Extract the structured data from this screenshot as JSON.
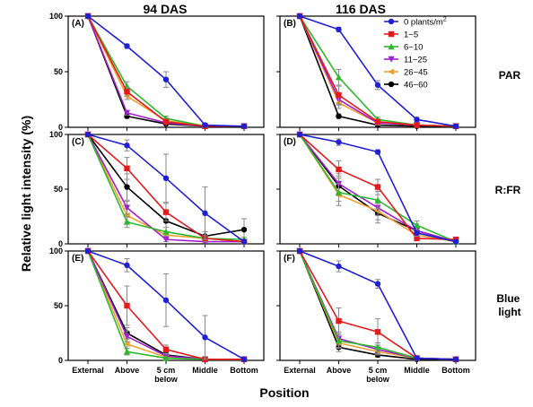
{
  "figure": {
    "column_titles": [
      "94 DAS",
      "116 DAS"
    ],
    "row_labels": [
      "PAR",
      "R:FR",
      "Blue light"
    ],
    "ylabel": "Relative light intensity (%)",
    "xlabel": "Position"
  },
  "legend": {
    "entries": [
      {
        "label": "0 plants/m",
        "sup": "2",
        "color": "#1f1fd6",
        "marker": "circle"
      },
      {
        "label": "1~5",
        "color": "#e41a1c",
        "marker": "square"
      },
      {
        "label": "6~10",
        "color": "#2db82d",
        "marker": "triangle-up"
      },
      {
        "label": "11~25",
        "color": "#a020d0",
        "marker": "triangle-down"
      },
      {
        "label": "26~45",
        "color": "#f0a030",
        "marker": "triangle-left"
      },
      {
        "label": "46~60",
        "color": "#000000",
        "marker": "circle"
      }
    ]
  },
  "chart_data": [
    {
      "panel": "(A)",
      "type": "line",
      "categories": [
        "External",
        "Above",
        "5 cm below",
        "Middle",
        "Bottom"
      ],
      "ylim": [
        0,
        100
      ],
      "yticks": [
        0,
        50,
        100
      ],
      "series": [
        {
          "name": "0 plants/m2",
          "values": [
            100,
            73,
            43,
            2,
            1
          ],
          "err": [
            0,
            2,
            7,
            1,
            0
          ]
        },
        {
          "name": "1~5",
          "values": [
            100,
            32,
            5,
            1,
            1
          ],
          "err": [
            0,
            4,
            2,
            0,
            0
          ]
        },
        {
          "name": "6~10",
          "values": [
            100,
            37,
            8,
            1,
            1
          ],
          "err": [
            0,
            4,
            2,
            0,
            0
          ]
        },
        {
          "name": "11~25",
          "values": [
            100,
            13,
            4,
            1,
            1
          ],
          "err": [
            0,
            2,
            1,
            0,
            0
          ]
        },
        {
          "name": "26~45",
          "values": [
            100,
            28,
            6,
            1,
            1
          ],
          "err": [
            0,
            3,
            1,
            0,
            0
          ]
        },
        {
          "name": "46~60",
          "values": [
            100,
            10,
            3,
            1,
            1
          ],
          "err": [
            0,
            2,
            1,
            0,
            0
          ]
        }
      ]
    },
    {
      "panel": "(B)",
      "type": "line",
      "categories": [
        "External",
        "Above",
        "5 cm below",
        "Middle",
        "Bottom"
      ],
      "ylim": [
        0,
        100
      ],
      "yticks": [
        0,
        50,
        100
      ],
      "series": [
        {
          "name": "0 plants/m2",
          "values": [
            100,
            88,
            38,
            7,
            1
          ],
          "err": [
            0,
            2,
            4,
            2,
            0
          ]
        },
        {
          "name": "1~5",
          "values": [
            100,
            29,
            5,
            2,
            1
          ],
          "err": [
            0,
            8,
            2,
            1,
            0
          ]
        },
        {
          "name": "6~10",
          "values": [
            100,
            45,
            7,
            2,
            1
          ],
          "err": [
            0,
            7,
            2,
            1,
            0
          ]
        },
        {
          "name": "11~25",
          "values": [
            100,
            25,
            4,
            2,
            1
          ],
          "err": [
            0,
            5,
            2,
            1,
            0
          ]
        },
        {
          "name": "26~45",
          "values": [
            100,
            22,
            4,
            2,
            1
          ],
          "err": [
            0,
            5,
            2,
            1,
            0
          ]
        },
        {
          "name": "46~60",
          "values": [
            100,
            10,
            2,
            1,
            1
          ],
          "err": [
            0,
            2,
            1,
            0,
            0
          ]
        }
      ]
    },
    {
      "panel": "(C)",
      "type": "line",
      "categories": [
        "External",
        "Above",
        "5 cm below",
        "Middle",
        "Bottom"
      ],
      "ylim": [
        0,
        100
      ],
      "yticks": [
        0,
        50,
        100
      ],
      "series": [
        {
          "name": "0 plants/m2",
          "values": [
            100,
            90,
            60,
            28,
            2
          ],
          "err": [
            0,
            5,
            22,
            24,
            2
          ]
        },
        {
          "name": "1~5",
          "values": [
            100,
            69,
            29,
            5,
            2
          ],
          "err": [
            0,
            10,
            8,
            3,
            1
          ]
        },
        {
          "name": "6~10",
          "values": [
            100,
            20,
            11,
            5,
            4
          ],
          "err": [
            0,
            5,
            4,
            2,
            2
          ]
        },
        {
          "name": "11~25",
          "values": [
            100,
            33,
            4,
            2,
            2
          ],
          "err": [
            0,
            6,
            2,
            1,
            1
          ]
        },
        {
          "name": "26~45",
          "values": [
            100,
            26,
            8,
            5,
            2
          ],
          "err": [
            0,
            6,
            3,
            2,
            1
          ]
        },
        {
          "name": "46~60",
          "values": [
            100,
            52,
            21,
            7,
            13
          ],
          "err": [
            0,
            12,
            10,
            4,
            10
          ]
        }
      ]
    },
    {
      "panel": "(D)",
      "type": "line",
      "categories": [
        "External",
        "Above",
        "5 cm below",
        "Middle",
        "Bottom"
      ],
      "ylim": [
        0,
        100
      ],
      "yticks": [
        0,
        50,
        100
      ],
      "series": [
        {
          "name": "0 plants/m2",
          "values": [
            100,
            93,
            84,
            10,
            2
          ],
          "err": [
            0,
            3,
            2,
            3,
            1
          ]
        },
        {
          "name": "1~5",
          "values": [
            100,
            68,
            52,
            5,
            4
          ],
          "err": [
            0,
            8,
            7,
            2,
            2
          ]
        },
        {
          "name": "6~10",
          "values": [
            100,
            47,
            40,
            17,
            2
          ],
          "err": [
            0,
            8,
            8,
            4,
            1
          ]
        },
        {
          "name": "11~25",
          "values": [
            100,
            55,
            33,
            12,
            2
          ],
          "err": [
            0,
            9,
            7,
            3,
            1
          ]
        },
        {
          "name": "26~45",
          "values": [
            100,
            45,
            30,
            8,
            2
          ],
          "err": [
            0,
            10,
            8,
            3,
            1
          ]
        },
        {
          "name": "46~60",
          "values": [
            100,
            53,
            28,
            12,
            2
          ],
          "err": [
            0,
            9,
            9,
            6,
            1
          ]
        }
      ]
    },
    {
      "panel": "(E)",
      "type": "line",
      "categories": [
        "External",
        "Above",
        "5 cm below",
        "Middle",
        "Bottom"
      ],
      "ylim": [
        0,
        100
      ],
      "yticks": [
        0,
        50,
        100
      ],
      "series": [
        {
          "name": "0 plants/m2",
          "values": [
            100,
            87,
            55,
            21,
            1
          ],
          "err": [
            0,
            6,
            24,
            20,
            1
          ]
        },
        {
          "name": "1~5",
          "values": [
            100,
            50,
            10,
            1,
            1
          ],
          "err": [
            0,
            18,
            4,
            1,
            0
          ]
        },
        {
          "name": "6~10",
          "values": [
            100,
            8,
            2,
            1,
            1
          ],
          "err": [
            0,
            3,
            1,
            0,
            0
          ]
        },
        {
          "name": "11~25",
          "values": [
            100,
            22,
            4,
            1,
            1
          ],
          "err": [
            0,
            5,
            2,
            0,
            0
          ]
        },
        {
          "name": "26~45",
          "values": [
            100,
            15,
            3,
            1,
            1
          ],
          "err": [
            0,
            4,
            2,
            0,
            0
          ]
        },
        {
          "name": "46~60",
          "values": [
            100,
            25,
            5,
            1,
            1
          ],
          "err": [
            0,
            5,
            2,
            0,
            0
          ]
        }
      ]
    },
    {
      "panel": "(F)",
      "type": "line",
      "categories": [
        "External",
        "Above",
        "5 cm below",
        "Middle",
        "Bottom"
      ],
      "ylim": [
        0,
        100
      ],
      "yticks": [
        0,
        50,
        100
      ],
      "series": [
        {
          "name": "0 plants/m2",
          "values": [
            100,
            86,
            70,
            2,
            1
          ],
          "err": [
            0,
            5,
            4,
            1,
            0
          ]
        },
        {
          "name": "1~5",
          "values": [
            100,
            36,
            26,
            2,
            1
          ],
          "err": [
            0,
            12,
            12,
            1,
            0
          ]
        },
        {
          "name": "6~10",
          "values": [
            100,
            18,
            12,
            2,
            1
          ],
          "err": [
            0,
            6,
            4,
            1,
            0
          ]
        },
        {
          "name": "11~25",
          "values": [
            100,
            20,
            10,
            2,
            1
          ],
          "err": [
            0,
            6,
            4,
            1,
            0
          ]
        },
        {
          "name": "26~45",
          "values": [
            100,
            16,
            8,
            2,
            1
          ],
          "err": [
            0,
            5,
            3,
            1,
            0
          ]
        },
        {
          "name": "46~60",
          "values": [
            100,
            12,
            5,
            1,
            1
          ],
          "err": [
            0,
            4,
            2,
            0,
            0
          ]
        }
      ]
    }
  ]
}
